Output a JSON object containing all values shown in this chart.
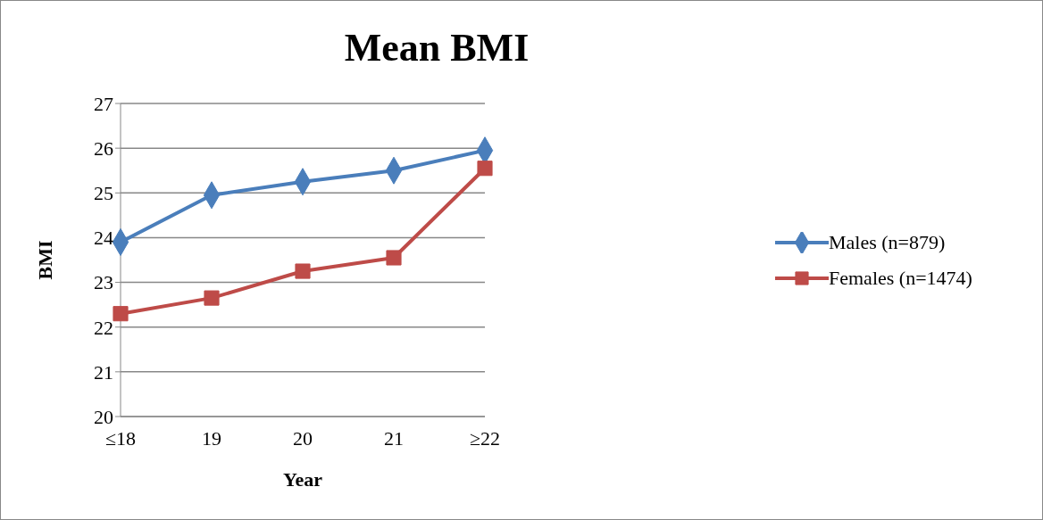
{
  "chart_data": {
    "type": "line",
    "title": "Mean BMI",
    "xlabel": "Year",
    "ylabel": "BMI",
    "categories": [
      "≤18",
      "19",
      "20",
      "21",
      "≥22"
    ],
    "series": [
      {
        "name": "Males (n=879)",
        "color": "#4a7ebb",
        "marker": "diamond",
        "values": [
          23.9,
          24.95,
          25.25,
          25.5,
          25.95
        ]
      },
      {
        "name": "Females (n=1474)",
        "color": "#be4b48",
        "marker": "square",
        "values": [
          22.3,
          22.65,
          23.25,
          23.55,
          25.55
        ]
      }
    ],
    "ylim": [
      20,
      27
    ],
    "yticks": [
      20,
      21,
      22,
      23,
      24,
      25,
      26,
      27
    ],
    "grid": "y",
    "legend": "right",
    "line_style": "solid"
  }
}
